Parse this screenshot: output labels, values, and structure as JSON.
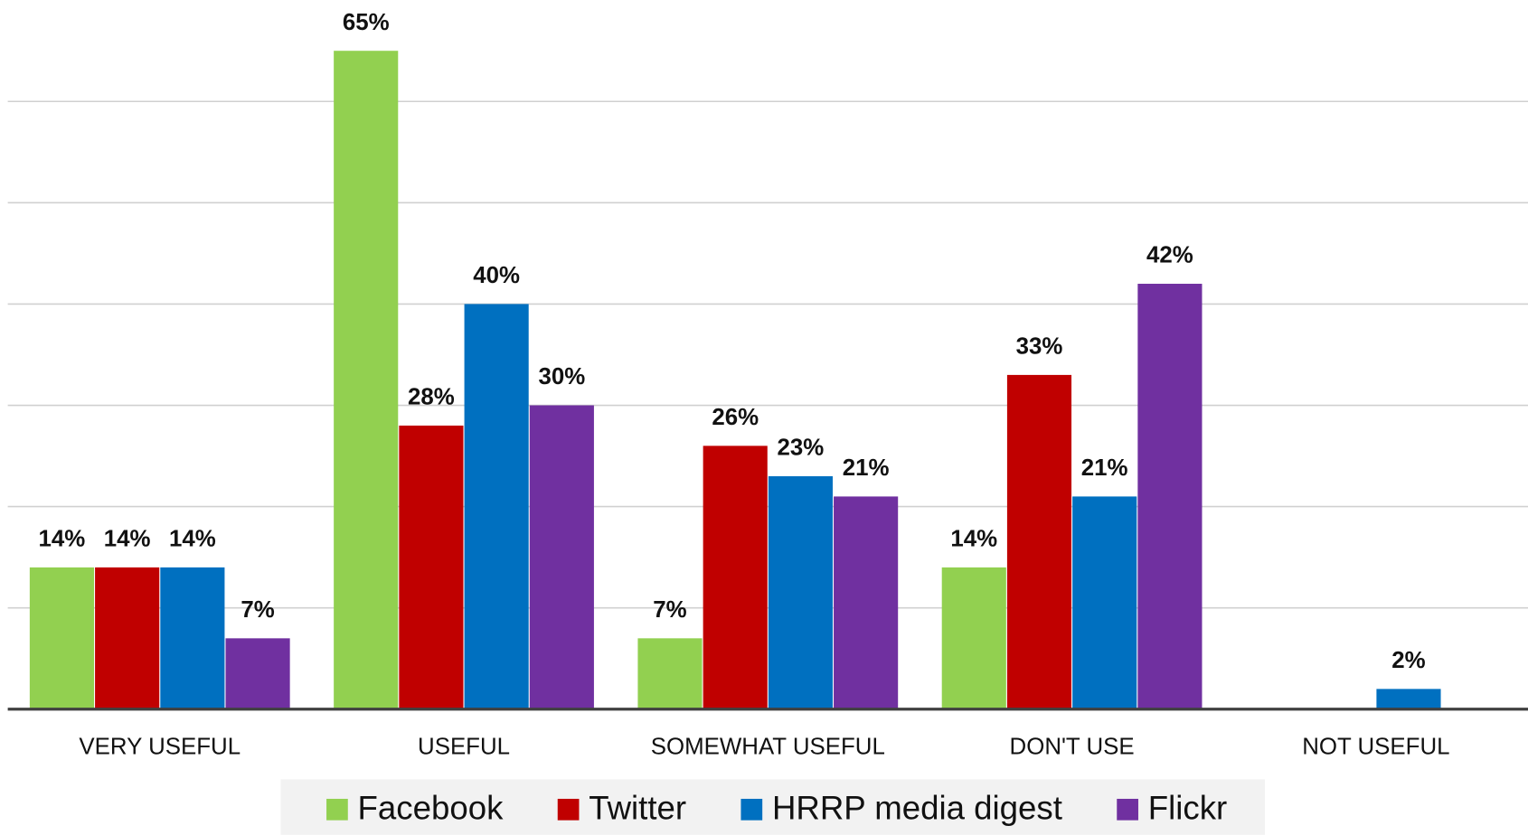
{
  "chart_data": {
    "type": "bar",
    "categories": [
      "VERY USEFUL",
      "USEFUL",
      "SOMEWHAT USEFUL",
      "DON'T USE",
      "NOT USEFUL"
    ],
    "series": [
      {
        "name": "Facebook",
        "color": "#92d050",
        "values": [
          14,
          65,
          7,
          14,
          null
        ],
        "value_labels": [
          "14%",
          "65%",
          "7%",
          "14%",
          null
        ]
      },
      {
        "name": "Twitter",
        "color": "#c00000",
        "values": [
          14,
          28,
          26,
          33,
          null
        ],
        "value_labels": [
          "14%",
          "28%",
          "26%",
          "33%",
          null
        ]
      },
      {
        "name": "HRRP media digest",
        "color": "#0070c0",
        "values": [
          14,
          40,
          23,
          21,
          2
        ],
        "value_labels": [
          "14%",
          "40%",
          "23%",
          "21%",
          "2%"
        ]
      },
      {
        "name": "Flickr",
        "color": "#7030a0",
        "values": [
          7,
          30,
          21,
          42,
          null
        ],
        "value_labels": [
          "7%",
          "30%",
          "21%",
          "42%",
          null
        ]
      }
    ],
    "ylim": [
      0,
      70
    ],
    "yticks": [
      0,
      10,
      20,
      30,
      40,
      50,
      60
    ],
    "grid": true,
    "legend": "bottom"
  }
}
